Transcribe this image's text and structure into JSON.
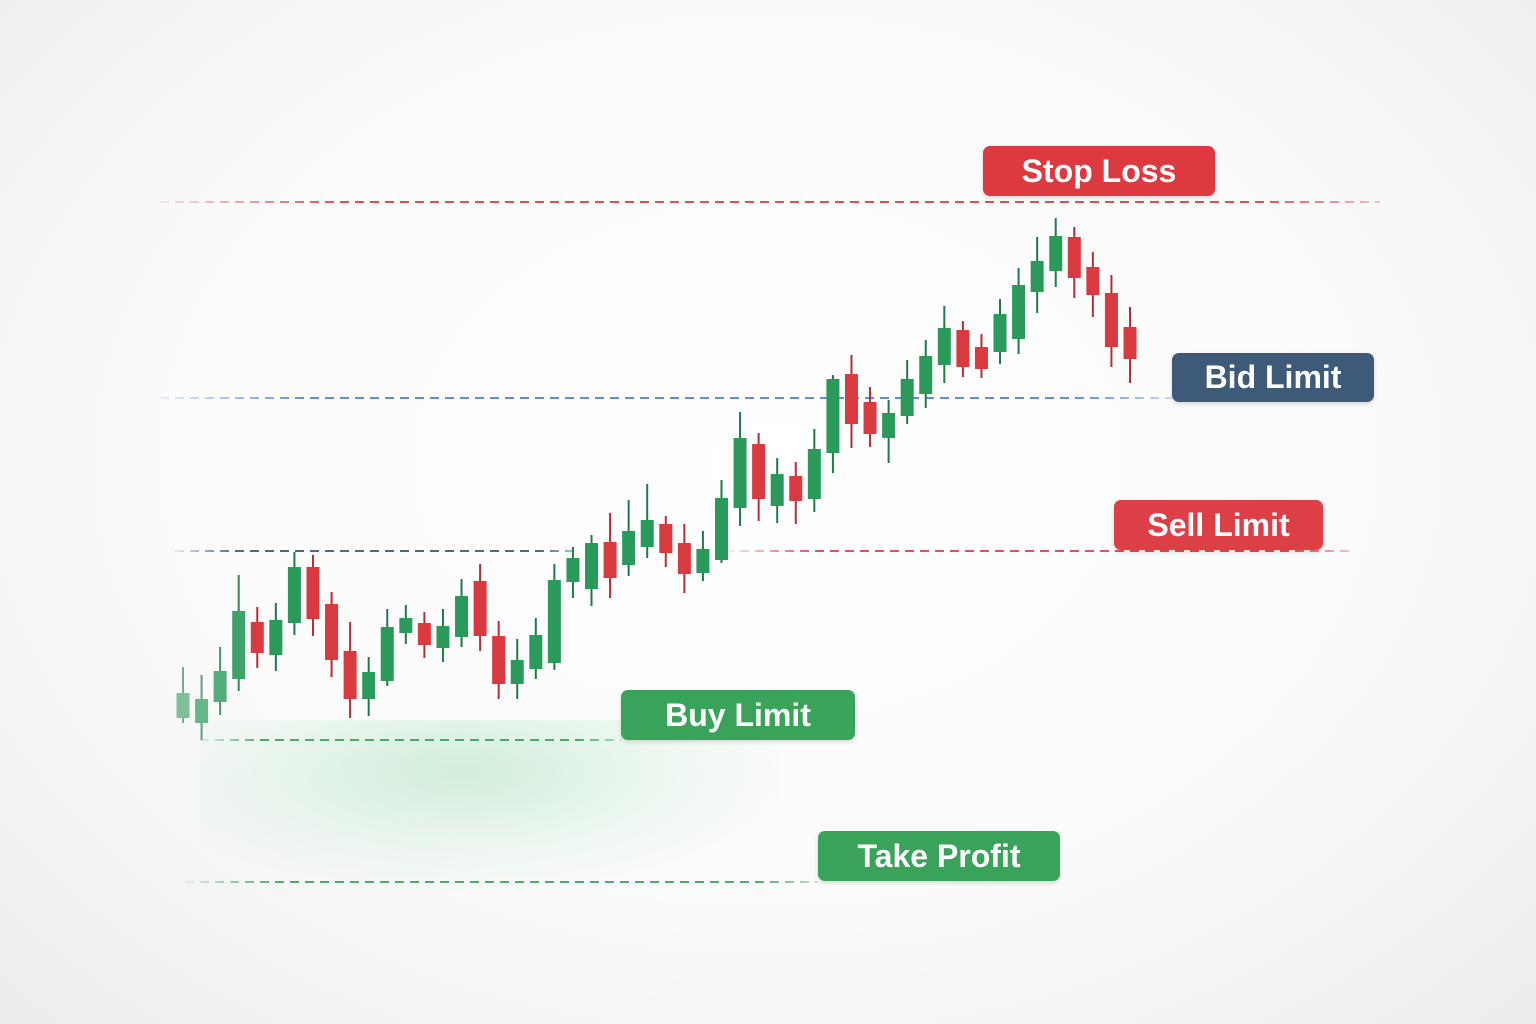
{
  "colors": {
    "up": "#2a9a5a",
    "down": "#d83a3f",
    "stop_loss": "#dc3a40",
    "bid_limit": "#3d5a78",
    "sell_limit": "#dc3f45",
    "buy_limit": "#3aa35a",
    "take_profit": "#3aa35a",
    "bid_line": "#4a7fe0"
  },
  "chart_data": {
    "type": "candlestick",
    "title": "",
    "xlabel": "",
    "ylabel": "",
    "axes_visible": false,
    "grid": false,
    "ylim": [
      0,
      100
    ],
    "levels": [
      {
        "name": "stop_loss",
        "label": "Stop Loss",
        "value": 79.8
      },
      {
        "name": "bid_limit",
        "label": "Bid Limit",
        "value": 60.2
      },
      {
        "name": "sell_limit",
        "label": "Sell Limit",
        "value": 44.9
      },
      {
        "name": "buy_limit",
        "label": "Buy Limit",
        "value": 26.0
      },
      {
        "name": "take_profit",
        "label": "Take Profit",
        "value": 11.8
      }
    ],
    "candles": [
      [
        28.2,
        30.7,
        33.3,
        27.7
      ],
      [
        27.7,
        30.1,
        32.5,
        26.0
      ],
      [
        29.8,
        32.9,
        35.3,
        28.5
      ],
      [
        32.1,
        38.9,
        42.5,
        30.9
      ],
      [
        37.8,
        34.7,
        39.3,
        33.2
      ],
      [
        34.5,
        38.0,
        39.7,
        32.9
      ],
      [
        37.7,
        43.3,
        44.8,
        36.5
      ],
      [
        43.3,
        38.1,
        44.5,
        36.4
      ],
      [
        39.6,
        34.0,
        40.8,
        32.3
      ],
      [
        34.9,
        30.1,
        37.8,
        28.2
      ],
      [
        30.1,
        32.8,
        34.3,
        28.4
      ],
      [
        31.9,
        37.3,
        39.1,
        31.4
      ],
      [
        36.7,
        38.2,
        39.5,
        35.6
      ],
      [
        37.7,
        35.5,
        38.8,
        34.2
      ],
      [
        35.2,
        37.4,
        39.1,
        33.8
      ],
      [
        36.3,
        40.4,
        42.1,
        35.3
      ],
      [
        41.9,
        36.4,
        43.6,
        34.9
      ],
      [
        36.4,
        31.6,
        37.9,
        30.1
      ],
      [
        31.6,
        34.0,
        36.1,
        30.1
      ],
      [
        33.1,
        36.5,
        38.2,
        32.1
      ],
      [
        33.7,
        42.0,
        43.6,
        33.0
      ],
      [
        41.8,
        44.2,
        45.3,
        40.2
      ],
      [
        41.1,
        45.7,
        46.5,
        39.4
      ],
      [
        45.8,
        42.2,
        48.7,
        40.2
      ],
      [
        43.5,
        46.9,
        50.0,
        42.4
      ],
      [
        45.3,
        48.0,
        51.6,
        44.2
      ],
      [
        47.6,
        44.7,
        48.4,
        43.3
      ],
      [
        45.7,
        42.6,
        47.6,
        40.7
      ],
      [
        42.7,
        45.1,
        46.9,
        41.9
      ],
      [
        44.0,
        50.2,
        52.0,
        43.7
      ],
      [
        49.2,
        56.2,
        58.8,
        47.4
      ],
      [
        55.6,
        50.1,
        56.7,
        47.9
      ],
      [
        49.4,
        52.6,
        54.2,
        47.7
      ],
      [
        52.4,
        49.9,
        53.8,
        47.6
      ],
      [
        50.1,
        55.1,
        57.1,
        48.8
      ],
      [
        54.7,
        62.1,
        62.5,
        52.7
      ],
      [
        62.6,
        57.6,
        64.5,
        55.2
      ],
      [
        59.8,
        56.6,
        61.3,
        55.3
      ],
      [
        56.2,
        58.7,
        60.0,
        53.7
      ],
      [
        58.4,
        62.1,
        64.0,
        57.6
      ],
      [
        60.6,
        64.4,
        66.0,
        59.2
      ],
      [
        63.5,
        67.2,
        69.4,
        61.7
      ],
      [
        67.0,
        63.3,
        67.9,
        62.3
      ],
      [
        65.3,
        63.1,
        66.6,
        62.2
      ],
      [
        64.8,
        68.6,
        70.1,
        63.6
      ],
      [
        66.1,
        71.5,
        73.2,
        64.6
      ],
      [
        70.8,
        73.9,
        76.3,
        68.7
      ],
      [
        72.9,
        76.4,
        78.2,
        71.3
      ],
      [
        76.3,
        72.2,
        77.3,
        70.2
      ],
      [
        73.3,
        70.5,
        74.8,
        68.3
      ],
      [
        70.7,
        65.3,
        72.5,
        63.3
      ],
      [
        67.3,
        64.1,
        69.3,
        61.7
      ]
    ],
    "candle_format": [
      "open",
      "close",
      "high",
      "low"
    ]
  }
}
